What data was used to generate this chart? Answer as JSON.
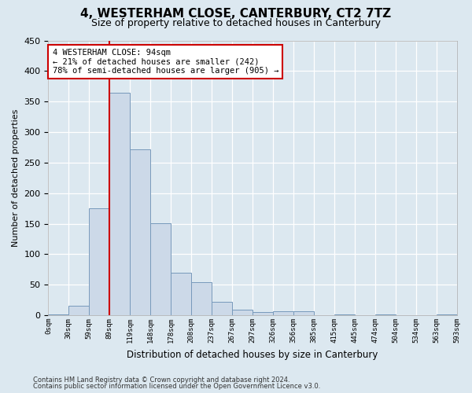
{
  "title": "4, WESTERHAM CLOSE, CANTERBURY, CT2 7TZ",
  "subtitle": "Size of property relative to detached houses in Canterbury",
  "xlabel": "Distribution of detached houses by size in Canterbury",
  "ylabel": "Number of detached properties",
  "bar_values": [
    2,
    16,
    175,
    365,
    272,
    151,
    70,
    54,
    22,
    9,
    5,
    6,
    6,
    0,
    2,
    0,
    1,
    0,
    0,
    1
  ],
  "tick_labels": [
    "0sqm",
    "30sqm",
    "59sqm",
    "89sqm",
    "119sqm",
    "148sqm",
    "178sqm",
    "208sqm",
    "237sqm",
    "267sqm",
    "297sqm",
    "326sqm",
    "356sqm",
    "385sqm",
    "415sqm",
    "445sqm",
    "474sqm",
    "504sqm",
    "534sqm",
    "563sqm",
    "593sqm"
  ],
  "bar_color": "#ccd9e8",
  "bar_edge_color": "#7799bb",
  "vline_x_bin": 3,
  "vline_color": "#cc0000",
  "ylim": [
    0,
    450
  ],
  "annotation_text": "4 WESTERHAM CLOSE: 94sqm\n← 21% of detached houses are smaller (242)\n78% of semi-detached houses are larger (905) →",
  "annotation_box_color": "#ffffff",
  "annotation_box_edge": "#cc0000",
  "footer1": "Contains HM Land Registry data © Crown copyright and database right 2024.",
  "footer2": "Contains public sector information licensed under the Open Government Licence v3.0.",
  "background_color": "#dce8f0",
  "plot_background": "#dce8f0"
}
